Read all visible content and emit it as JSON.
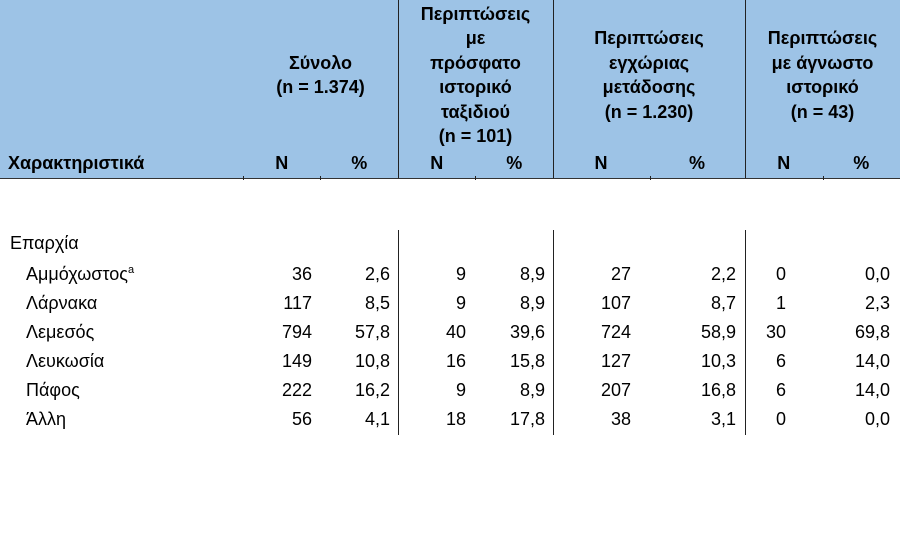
{
  "header": {
    "row_label": "Χαρακτηριστικά",
    "groups": [
      {
        "title": "Σύνολο\n(n = 1.374)",
        "n_label": "N",
        "pct_label": "%"
      },
      {
        "title": "Περιπτώσεις\nμε\nπρόσφατο\nιστορικό\nταξιδιού\n(n = 101)",
        "n_label": "N",
        "pct_label": "%"
      },
      {
        "title": "Περιπτώσεις\nεγχώριας\nμετάδοσης\n(n = 1.230)",
        "n_label": "N",
        "pct_label": "%"
      },
      {
        "title": "Περιπτώσεις\nμε άγνωστο\nιστορικό\n(n = 43)",
        "n_label": "N",
        "pct_label": "%"
      }
    ]
  },
  "table": {
    "section": "Επαρχία",
    "rows": [
      {
        "label": "Αμμόχωστος",
        "footnote": "a",
        "cells": [
          "36",
          "2,6",
          "9",
          "8,9",
          "27",
          "2,2",
          "0",
          "0,0"
        ]
      },
      {
        "label": "Λάρνακα",
        "cells": [
          "117",
          "8,5",
          "9",
          "8,9",
          "107",
          "8,7",
          "1",
          "2,3"
        ]
      },
      {
        "label": "Λεμεσός",
        "cells": [
          "794",
          "57,8",
          "40",
          "39,6",
          "724",
          "58,9",
          "30",
          "69,8"
        ]
      },
      {
        "label": "Λευκωσία",
        "cells": [
          "149",
          "10,8",
          "16",
          "15,8",
          "127",
          "10,3",
          "6",
          "14,0"
        ]
      },
      {
        "label": "Πάφος",
        "cells": [
          "222",
          "16,2",
          "9",
          "8,9",
          "207",
          "16,8",
          "6",
          "14,0"
        ]
      },
      {
        "label": "Άλλη",
        "cells": [
          "56",
          "4,1",
          "18",
          "17,8",
          "38",
          "3,1",
          "0",
          "0,0"
        ]
      }
    ]
  }
}
